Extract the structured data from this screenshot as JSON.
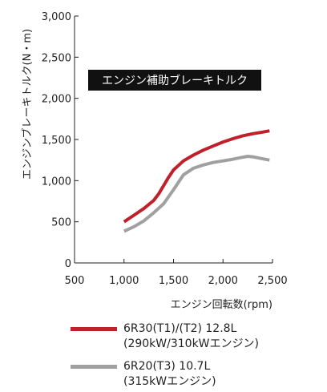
{
  "chart_data": {
    "type": "line",
    "title": "エンジン補助ブレーキトルク",
    "xlabel": "エンジン回転数(rpm)",
    "ylabel": "エンジンブレーキトルク(N・m)",
    "xlim": [
      500,
      2500
    ],
    "ylim": [
      0,
      3000
    ],
    "x_ticks": [
      "500",
      "1,000",
      "1,500",
      "2,000",
      "2,500"
    ],
    "y_ticks": [
      "0",
      "500",
      "1,000",
      "1,500",
      "2,000",
      "2,500",
      "3,000"
    ],
    "x_tick_values": [
      500,
      1000,
      1500,
      2000,
      2500
    ],
    "y_tick_values": [
      0,
      500,
      1000,
      1500,
      2000,
      2500,
      3000
    ],
    "grid": false,
    "legend_position": "bottom",
    "series": [
      {
        "name": "6R30(T1)/(T2) 12.8L",
        "name_line2": "(290kW/310kWエンジン)",
        "color": "#c0202a",
        "points": [
          [
            1000,
            500
          ],
          [
            1100,
            580
          ],
          [
            1200,
            660
          ],
          [
            1300,
            760
          ],
          [
            1350,
            840
          ],
          [
            1400,
            940
          ],
          [
            1450,
            1040
          ],
          [
            1500,
            1130
          ],
          [
            1600,
            1240
          ],
          [
            1700,
            1310
          ],
          [
            1800,
            1370
          ],
          [
            1900,
            1420
          ],
          [
            2000,
            1470
          ],
          [
            2100,
            1510
          ],
          [
            2200,
            1545
          ],
          [
            2300,
            1570
          ],
          [
            2400,
            1590
          ],
          [
            2470,
            1605
          ]
        ]
      },
      {
        "name": "6R20(T3) 10.7L",
        "name_line2": "(315kWエンジン)",
        "color": "#a0a0a0",
        "points": [
          [
            1000,
            385
          ],
          [
            1100,
            440
          ],
          [
            1200,
            510
          ],
          [
            1300,
            610
          ],
          [
            1400,
            720
          ],
          [
            1500,
            890
          ],
          [
            1600,
            1070
          ],
          [
            1700,
            1150
          ],
          [
            1800,
            1190
          ],
          [
            1900,
            1220
          ],
          [
            2000,
            1240
          ],
          [
            2100,
            1260
          ],
          [
            2200,
            1285
          ],
          [
            2250,
            1295
          ],
          [
            2300,
            1290
          ],
          [
            2400,
            1265
          ],
          [
            2470,
            1250
          ]
        ]
      }
    ]
  }
}
